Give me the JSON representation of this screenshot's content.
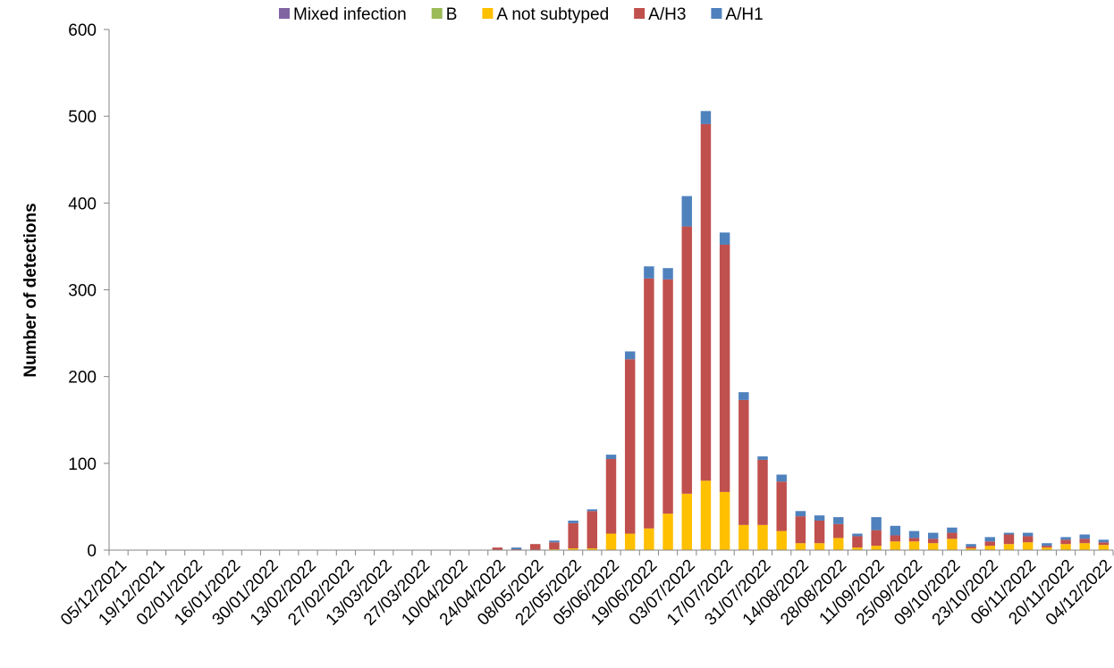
{
  "chart_data": {
    "type": "stacked_bar",
    "y_label": "Number of detections",
    "categories": [
      "05/12/2021",
      null,
      "19/12/2021",
      null,
      "02/01/2022",
      null,
      "16/01/2022",
      null,
      "30/01/2022",
      null,
      "13/02/2022",
      null,
      "27/02/2022",
      null,
      "13/03/2022",
      null,
      "27/03/2022",
      null,
      "10/04/2022",
      null,
      "24/04/2022",
      null,
      "08/05/2022",
      null,
      "22/05/2022",
      null,
      "05/06/2022",
      null,
      "19/06/2022",
      null,
      "03/07/2022",
      null,
      "17/07/2022",
      null,
      "31/07/2022",
      null,
      "14/08/2022",
      null,
      "28/08/2022",
      null,
      "11/09/2022",
      null,
      "25/09/2022",
      null,
      "09/10/2022",
      null,
      "23/10/2022",
      null,
      "06/11/2022",
      null,
      "20/11/2022",
      null,
      "04/12/2022"
    ],
    "series": [
      {
        "name": "Mixed infection",
        "color": "#8064a2",
        "values": [
          0,
          0,
          0,
          0,
          0,
          0,
          0,
          0,
          0,
          0,
          0,
          0,
          0,
          0,
          0,
          0,
          0,
          0,
          0,
          0,
          0,
          0,
          0,
          0,
          0,
          0,
          0,
          0,
          0,
          0,
          0,
          0,
          0,
          0,
          0,
          0,
          0,
          0,
          0,
          0,
          0,
          0,
          0,
          0,
          0,
          0,
          0,
          0,
          0,
          0,
          0,
          0,
          0
        ]
      },
      {
        "name": "B",
        "color": "#9bbb59",
        "values": [
          0,
          0,
          0,
          0,
          0,
          0,
          0,
          0,
          0,
          0,
          0,
          0,
          0,
          0,
          0,
          0,
          0,
          0,
          0,
          0,
          0,
          0,
          0,
          0,
          0,
          0,
          0,
          0,
          0,
          0,
          0,
          0,
          0,
          0,
          0,
          0,
          0,
          0,
          0,
          0,
          0,
          0,
          0,
          0,
          0,
          0,
          0,
          0,
          0,
          0,
          0,
          0,
          0
        ]
      },
      {
        "name": "A not subtyped",
        "color": "#ffc000",
        "values": [
          0,
          0,
          0,
          0,
          0,
          0,
          0,
          0,
          0,
          0,
          0,
          0,
          0,
          0,
          0,
          0,
          0,
          0,
          0,
          0,
          0,
          0,
          0,
          1,
          2,
          2,
          19,
          19,
          25,
          42,
          65,
          80,
          67,
          29,
          29,
          22,
          8,
          8,
          14,
          3,
          5,
          10,
          10,
          8,
          13,
          2,
          5,
          7,
          9,
          3,
          7,
          8,
          6
        ]
      },
      {
        "name": "A/H3",
        "color": "#c0504d",
        "values": [
          0,
          0,
          0,
          0,
          0,
          0,
          0,
          0,
          0,
          0,
          0,
          0,
          0,
          0,
          0,
          0,
          0,
          0,
          0,
          0,
          3,
          1,
          7,
          8,
          29,
          43,
          86,
          201,
          288,
          270,
          308,
          411,
          285,
          144,
          75,
          57,
          31,
          26,
          16,
          13,
          18,
          7,
          4,
          5,
          7,
          2,
          5,
          11,
          7,
          2,
          5,
          5,
          3
        ]
      },
      {
        "name": "A/H1",
        "color": "#4f81bd",
        "values": [
          0,
          0,
          0,
          0,
          0,
          0,
          0,
          0,
          0,
          0,
          0,
          0,
          0,
          0,
          0,
          0,
          0,
          0,
          0,
          0,
          0,
          2,
          0,
          2,
          3,
          2,
          5,
          9,
          14,
          13,
          35,
          15,
          14,
          9,
          4,
          8,
          6,
          6,
          8,
          3,
          15,
          11,
          8,
          7,
          6,
          3,
          5,
          2,
          4,
          3,
          3,
          5,
          3
        ]
      }
    ],
    "ylim": [
      0,
      600
    ],
    "yticks": [
      0,
      100,
      200,
      300,
      400,
      500,
      600
    ],
    "grid": false,
    "legend": "top"
  }
}
